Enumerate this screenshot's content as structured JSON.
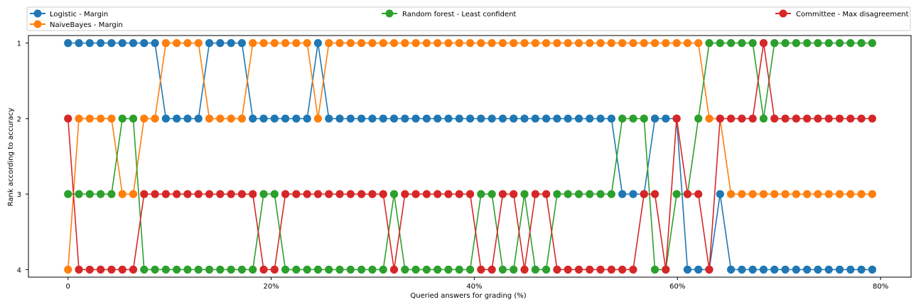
{
  "chart_data": {
    "type": "line",
    "xlabel": "Queried answers for grading (%)",
    "ylabel": "Rank according to accuracy",
    "xlim": [
      -3.9,
      83.0
    ],
    "ylim": [
      4.1,
      0.9
    ],
    "x_ticks": [
      0,
      20,
      40,
      60,
      80
    ],
    "x_tick_labels": [
      "0",
      "20%",
      "40%",
      "60%",
      "80%"
    ],
    "y_ticks": [
      1,
      2,
      3,
      4
    ],
    "y_tick_labels": [
      "1",
      "2",
      "3",
      "4"
    ],
    "legend": "top, 3 columns, above plot",
    "x": [
      0,
      1.07,
      2.14,
      3.21,
      4.28,
      5.35,
      6.42,
      7.49,
      8.56,
      9.63,
      10.7,
      11.77,
      12.84,
      13.91,
      14.98,
      16.05,
      17.12,
      18.19,
      19.26,
      20.33,
      21.4,
      22.47,
      23.54,
      24.61,
      25.68,
      26.75,
      27.82,
      28.89,
      29.96,
      31.03,
      32.1,
      33.17,
      34.24,
      35.31,
      36.38,
      37.45,
      38.52,
      39.59,
      40.66,
      41.73,
      42.8,
      43.87,
      44.94,
      46.01,
      47.08,
      48.15,
      49.22,
      50.29,
      51.36,
      52.43,
      53.5,
      54.57,
      55.64,
      56.71,
      57.78,
      58.85,
      59.92,
      60.99,
      62.06,
      63.13,
      64.2,
      65.27,
      66.34,
      67.41,
      68.48,
      69.55,
      70.62,
      71.69,
      72.76,
      73.83,
      74.9,
      75.97,
      77.04,
      78.11,
      79.18
    ],
    "series": [
      {
        "name": "Logistic - Margin",
        "color": "#1f77b4",
        "values": [
          1,
          1,
          1,
          1,
          1,
          1,
          1,
          1,
          1,
          2,
          2,
          2,
          2,
          1,
          1,
          1,
          1,
          2,
          2,
          2,
          2,
          2,
          2,
          1,
          2,
          2,
          2,
          2,
          2,
          2,
          2,
          2,
          2,
          2,
          2,
          2,
          2,
          2,
          2,
          2,
          2,
          2,
          2,
          2,
          2,
          2,
          2,
          2,
          2,
          2,
          2,
          3,
          3,
          3,
          2,
          2,
          2,
          4,
          4,
          4,
          3,
          4,
          4,
          4,
          4,
          4,
          4,
          4,
          4,
          4,
          4,
          4,
          4,
          4,
          4
        ]
      },
      {
        "name": "NaiveBayes - Margin",
        "color": "#ff7f0e",
        "values": [
          4,
          2,
          2,
          2,
          2,
          3,
          3,
          2,
          2,
          1,
          1,
          1,
          1,
          2,
          2,
          2,
          2,
          1,
          1,
          1,
          1,
          1,
          1,
          2,
          1,
          1,
          1,
          1,
          1,
          1,
          1,
          1,
          1,
          1,
          1,
          1,
          1,
          1,
          1,
          1,
          1,
          1,
          1,
          1,
          1,
          1,
          1,
          1,
          1,
          1,
          1,
          1,
          1,
          1,
          1,
          1,
          1,
          1,
          1,
          2,
          2,
          3,
          3,
          3,
          3,
          3,
          3,
          3,
          3,
          3,
          3,
          3,
          3,
          3,
          3
        ]
      },
      {
        "name": "Random forest - Least confident",
        "color": "#2ca02c",
        "values": [
          3,
          3,
          3,
          3,
          3,
          2,
          2,
          4,
          4,
          4,
          4,
          4,
          4,
          4,
          4,
          4,
          4,
          4,
          3,
          3,
          4,
          4,
          4,
          4,
          4,
          4,
          4,
          4,
          4,
          4,
          3,
          4,
          4,
          4,
          4,
          4,
          4,
          4,
          3,
          3,
          4,
          4,
          3,
          4,
          4,
          3,
          3,
          3,
          3,
          3,
          3,
          2,
          2,
          2,
          4,
          4,
          3,
          3,
          2,
          1,
          1,
          1,
          1,
          1,
          2,
          1,
          1,
          1,
          1,
          1,
          1,
          1,
          1,
          1,
          1
        ]
      },
      {
        "name": "Committee - Max disagreement",
        "color": "#d62728",
        "values": [
          2,
          4,
          4,
          4,
          4,
          4,
          4,
          3,
          3,
          3,
          3,
          3,
          3,
          3,
          3,
          3,
          3,
          3,
          4,
          4,
          3,
          3,
          3,
          3,
          3,
          3,
          3,
          3,
          3,
          3,
          4,
          3,
          3,
          3,
          3,
          3,
          3,
          3,
          4,
          4,
          3,
          3,
          4,
          3,
          3,
          4,
          4,
          4,
          4,
          4,
          4,
          4,
          4,
          3,
          3,
          4,
          2,
          3,
          3,
          4,
          2,
          2,
          2,
          2,
          1,
          2,
          2,
          2,
          2,
          2,
          2,
          2,
          2,
          2,
          2
        ]
      }
    ]
  }
}
